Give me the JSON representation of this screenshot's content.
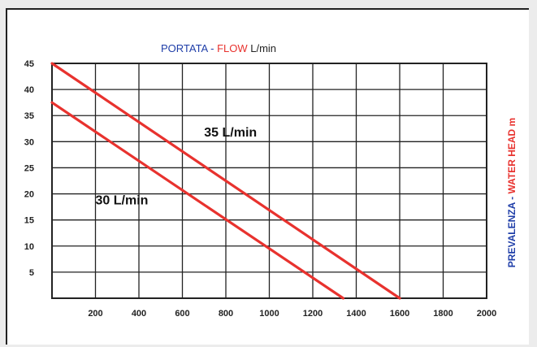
{
  "chart_data": {
    "type": "line",
    "title": {
      "parts": [
        {
          "text": "PORTATA - ",
          "color": "#1f3ea8"
        },
        {
          "text": "FLOW",
          "color": "#e8322e"
        },
        {
          "text": " L/min",
          "color": "#222222"
        }
      ]
    },
    "ylabel": {
      "parts": [
        {
          "text": "PREVALENZA - ",
          "color": "#1f3ea8"
        },
        {
          "text": "WATER HEAD m",
          "color": "#e8322e"
        }
      ]
    },
    "xlabel": "",
    "xlim": [
      0,
      2000
    ],
    "ylim": [
      0,
      45
    ],
    "x_ticks": [
      "200",
      "400",
      "600",
      "800",
      "1000",
      "1200",
      "1400",
      "1600",
      "1800",
      "2000"
    ],
    "y_ticks": [
      "5",
      "10",
      "15",
      "20",
      "25",
      "30",
      "35",
      "40",
      "45"
    ],
    "grid": true,
    "series": [
      {
        "name": "35 L/min",
        "color": "#e8322e",
        "x": [
          0,
          1600
        ],
        "y": [
          45,
          0
        ]
      },
      {
        "name": "30 L/min",
        "color": "#e8322e",
        "x": [
          0,
          1340
        ],
        "y": [
          37.5,
          0
        ]
      }
    ],
    "annotations": [
      {
        "text": "35 L/min",
        "x": 700,
        "y": 31
      },
      {
        "text": "30 L/min",
        "x": 200,
        "y": 18
      }
    ]
  }
}
